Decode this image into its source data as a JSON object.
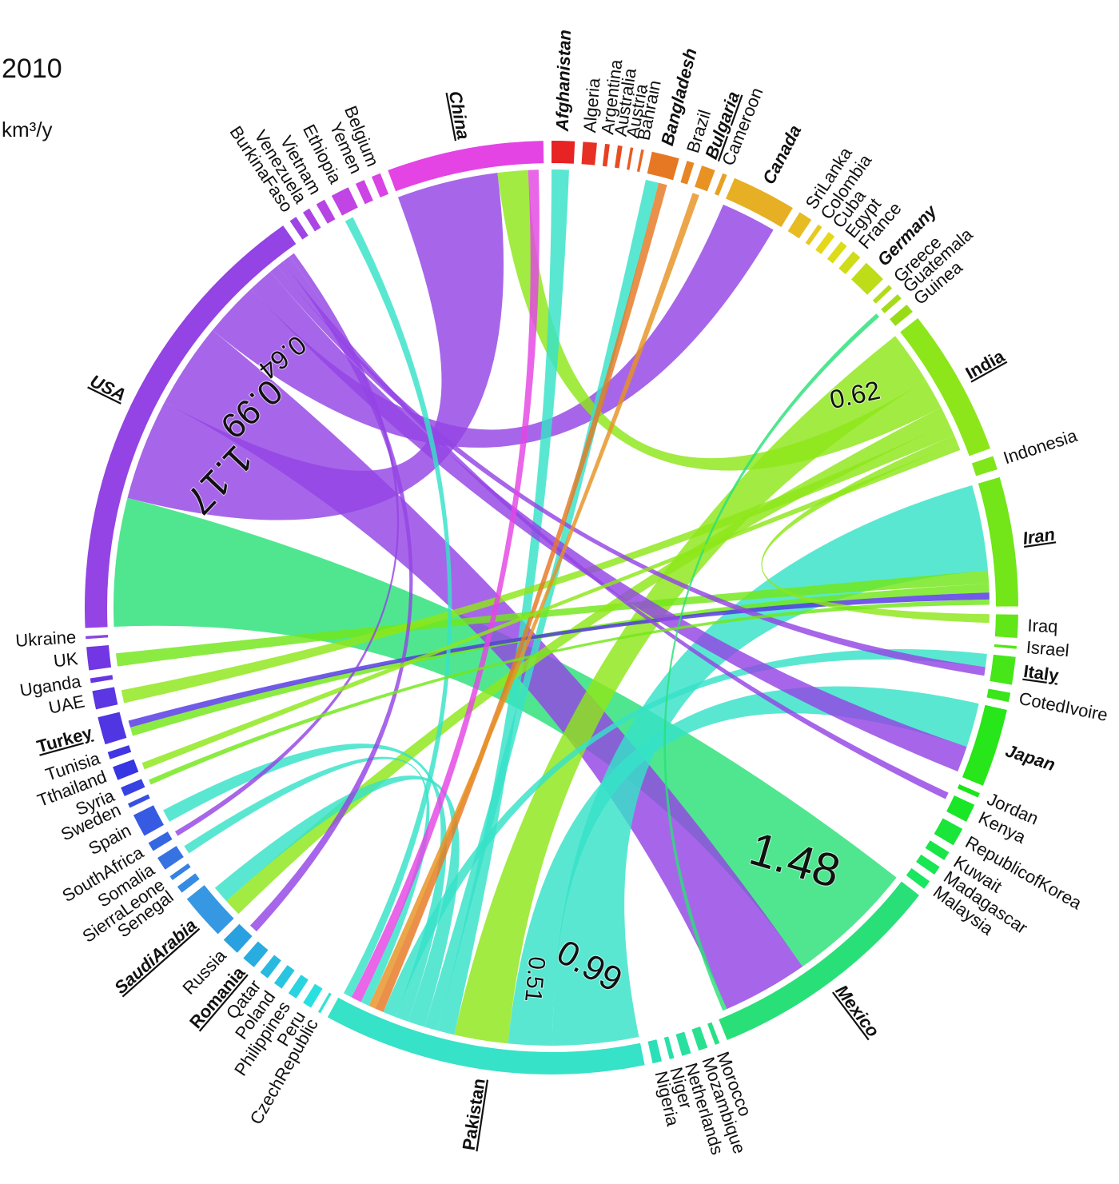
{
  "chart_data": {
    "type": "chord",
    "title": "2010",
    "unit": "km³/y",
    "nodes": [
      {
        "name": "Afghanistan",
        "value": 0.25,
        "color": "hsl(0,80%,52%)",
        "style": "bold-italic"
      },
      {
        "name": "Algeria",
        "value": 0.15,
        "color": "hsl(4,80%,52%)"
      },
      {
        "name": "Argentina",
        "value": 0.05,
        "color": "hsl(9,80%,52%)"
      },
      {
        "name": "Australia",
        "value": 0.05,
        "color": "hsl(13,80%,52%)"
      },
      {
        "name": "Austria",
        "value": 0.03,
        "color": "hsl(17,80%,52%)"
      },
      {
        "name": "Bahrain",
        "value": 0.03,
        "color": "hsl(21,80%,52%)"
      },
      {
        "name": "Bangladesh",
        "value": 0.3,
        "color": "hsl(26,80%,52%)",
        "style": "bold-italic"
      },
      {
        "name": "Brazil",
        "value": 0.08,
        "color": "hsl(30,80%,52%)"
      },
      {
        "name": "Bulgaria",
        "value": 0.15,
        "color": "hsl(34,80%,52%)",
        "style": "bold-italic-underline"
      },
      {
        "name": "Cameroon",
        "value": 0.05,
        "color": "hsl(39,80%,52%)"
      },
      {
        "name": "Canada",
        "value": 0.7,
        "color": "hsl(43,80%,52%)",
        "style": "bold-italic"
      },
      {
        "name": "SriLanka",
        "value": 0.15,
        "color": "hsl(47,80%,52%)"
      },
      {
        "name": "Colombia",
        "value": 0.05,
        "color": "hsl(51,80%,52%)"
      },
      {
        "name": "Cuba",
        "value": 0.08,
        "color": "hsl(56,80%,50%)"
      },
      {
        "name": "Egypt",
        "value": 0.08,
        "color": "hsl(60,80%,48%)"
      },
      {
        "name": "France",
        "value": 0.1,
        "color": "hsl(64,80%,48%)"
      },
      {
        "name": "Germany",
        "value": 0.25,
        "color": "hsl(69,80%,48%)",
        "style": "bold-italic"
      },
      {
        "name": "Greece",
        "value": 0.05,
        "color": "hsl(73,80%,48%)"
      },
      {
        "name": "Guatemala",
        "value": 0.06,
        "color": "hsl(77,80%,48%)"
      },
      {
        "name": "Guinea",
        "value": 0.1,
        "color": "hsl(81,80%,48%)"
      },
      {
        "name": "India",
        "value": 1.6,
        "color": "hsl(86,80%,50%)",
        "style": "bold-underline"
      },
      {
        "name": "Indonesia",
        "value": 0.15,
        "color": "hsl(90,80%,50%)"
      },
      {
        "name": "Iran",
        "value": 1.4,
        "color": "hsl(94,80%,50%)",
        "style": "bold-italic-underline"
      },
      {
        "name": "Iraq",
        "value": 0.25,
        "color": "hsl(99,80%,50%)"
      },
      {
        "name": "Israel",
        "value": 0.03,
        "color": "hsl(103,80%,50%)"
      },
      {
        "name": "Italy",
        "value": 0.3,
        "color": "hsl(107,80%,50%)",
        "style": "bold-underline"
      },
      {
        "name": "CotedIvoire",
        "value": 0.1,
        "color": "hsl(111,80%,50%)"
      },
      {
        "name": "Japan",
        "value": 0.85,
        "color": "hsl(116,80%,50%)",
        "style": "bold-italic"
      },
      {
        "name": "Jordan",
        "value": 0.05,
        "color": "hsl(120,80%,50%)"
      },
      {
        "name": "Kenya",
        "value": 0.2,
        "color": "hsl(124,80%,50%)"
      },
      {
        "name": "RepublicofKorea",
        "value": 0.2,
        "color": "hsl(129,80%,50%)"
      },
      {
        "name": "Kuwait",
        "value": 0.1,
        "color": "hsl(133,80%,50%)"
      },
      {
        "name": "Madagascar",
        "value": 0.1,
        "color": "hsl(137,80%,50%)"
      },
      {
        "name": "Malaysia",
        "value": 0.1,
        "color": "hsl(141,80%,50%)"
      },
      {
        "name": "Mexico",
        "value": 2.6,
        "color": "hsl(146,75%,52%)",
        "style": "bold-italic-underline"
      },
      {
        "name": "Morocco",
        "value": 0.05,
        "color": "hsl(150,75%,52%)"
      },
      {
        "name": "Mozambique",
        "value": 0.1,
        "color": "hsl(154,75%,52%)"
      },
      {
        "name": "Netherlands",
        "value": 0.1,
        "color": "hsl(159,75%,52%)"
      },
      {
        "name": "Niger",
        "value": 0.05,
        "color": "hsl(163,75%,52%)"
      },
      {
        "name": "Nigeria",
        "value": 0.1,
        "color": "hsl(167,75%,52%)"
      },
      {
        "name": "Pakistan",
        "value": 3.5,
        "color": "hsl(171,75%,55%)",
        "style": "bold-underline"
      },
      {
        "name": "CzechRepublic",
        "value": 0.03,
        "color": "hsl(176,75%,55%)"
      },
      {
        "name": "Peru",
        "value": 0.1,
        "color": "hsl(180,75%,52%)"
      },
      {
        "name": "Philippines",
        "value": 0.1,
        "color": "hsl(184,75%,52%)"
      },
      {
        "name": "Poland",
        "value": 0.1,
        "color": "hsl(189,75%,52%)"
      },
      {
        "name": "Qatar",
        "value": 0.1,
        "color": "hsl(193,75%,52%)"
      },
      {
        "name": "Romania",
        "value": 0.15,
        "color": "hsl(197,75%,52%)",
        "style": "bold-underline"
      },
      {
        "name": "Russia",
        "value": 0.2,
        "color": "hsl(201,75%,52%)"
      },
      {
        "name": "SaudiArabia",
        "value": 0.5,
        "color": "hsl(206,75%,55%)",
        "style": "bold-italic-underline"
      },
      {
        "name": "Senegal",
        "value": 0.08,
        "color": "hsl(210,75%,55%)"
      },
      {
        "name": "SierraLeone",
        "value": 0.05,
        "color": "hsl(214,75%,55%)"
      },
      {
        "name": "Somalia",
        "value": 0.15,
        "color": "hsl(219,75%,55%)"
      },
      {
        "name": "SouthAfrica",
        "value": 0.1,
        "color": "hsl(223,75%,55%)"
      },
      {
        "name": "Spain",
        "value": 0.25,
        "color": "hsl(227,75%,55%)"
      },
      {
        "name": "Sweden",
        "value": 0.05,
        "color": "hsl(231,75%,55%)"
      },
      {
        "name": "Syria",
        "value": 0.1,
        "color": "hsl(236,75%,55%)"
      },
      {
        "name": "Tthailand",
        "value": 0.15,
        "color": "hsl(240,75%,55%)"
      },
      {
        "name": "Tunisia",
        "value": 0.08,
        "color": "hsl(244,75%,55%)"
      },
      {
        "name": "Turkey",
        "value": 0.3,
        "color": "hsl(249,75%,55%)",
        "style": "bold-underline"
      },
      {
        "name": "UAE",
        "value": 0.2,
        "color": "hsl(253,75%,55%)"
      },
      {
        "name": "Uganda",
        "value": 0.05,
        "color": "hsl(257,75%,55%)"
      },
      {
        "name": "UK",
        "value": 0.25,
        "color": "hsl(261,75%,55%)"
      },
      {
        "name": "Ukraine",
        "value": 0.03,
        "color": "hsl(266,75%,58%)"
      },
      {
        "name": "USA",
        "value": 5.0,
        "color": "hsl(270,75%,58%)",
        "style": "bold-italic-underline"
      },
      {
        "name": "BurkinaFaso",
        "value": 0.08,
        "color": "hsl(274,75%,58%)"
      },
      {
        "name": "Venezuela",
        "value": 0.08,
        "color": "hsl(279,75%,58%)"
      },
      {
        "name": "Vietnam",
        "value": 0.1,
        "color": "hsl(283,75%,58%)"
      },
      {
        "name": "Ethiopia",
        "value": 0.2,
        "color": "hsl(287,75%,58%)"
      },
      {
        "name": "Yemen",
        "value": 0.1,
        "color": "hsl(291,75%,58%)"
      },
      {
        "name": "Belgium",
        "value": 0.1,
        "color": "hsl(296,75%,58%)"
      },
      {
        "name": "China",
        "value": 1.7,
        "color": "hsl(300,75%,58%)",
        "style": "bold-italic-underline"
      }
    ],
    "flows": [
      {
        "source": "Mexico",
        "target": "USA",
        "value": 1.48,
        "labeled": true
      },
      {
        "source": "USA",
        "target": "China",
        "value": 1.17,
        "labeled": true
      },
      {
        "source": "USA",
        "target": "Mexico",
        "value": 0.99,
        "labeled": true
      },
      {
        "source": "USA",
        "target": "Canada",
        "value": 0.64,
        "labeled": true
      },
      {
        "source": "Pakistan",
        "target": "Iran",
        "value": 0.99,
        "labeled": true
      },
      {
        "source": "Pakistan",
        "target": "Japan",
        "value": 0.51,
        "labeled": true
      },
      {
        "source": "India",
        "target": "Pakistan",
        "value": 0.62,
        "labeled": true
      },
      {
        "source": "India",
        "target": "China",
        "value": 0.35
      },
      {
        "source": "Pakistan",
        "target": "Afghanistan",
        "value": 0.2
      },
      {
        "source": "Pakistan",
        "target": "Bangladesh",
        "value": 0.15
      },
      {
        "source": "Iran",
        "target": "UK",
        "value": 0.15
      },
      {
        "source": "Iran",
        "target": "Turkey",
        "value": 0.1
      },
      {
        "source": "India",
        "target": "SaudiArabia",
        "value": 0.2
      },
      {
        "source": "India",
        "target": "UAE",
        "value": 0.15
      },
      {
        "source": "Pakistan",
        "target": "SaudiArabia",
        "value": 0.2
      },
      {
        "source": "Pakistan",
        "target": "Spain",
        "value": 0.15
      },
      {
        "source": "Pakistan",
        "target": "Italy",
        "value": 0.15
      },
      {
        "source": "Turkey",
        "target": "Iran",
        "value": 0.08
      },
      {
        "source": "USA",
        "target": "Japan",
        "value": 0.3
      },
      {
        "source": "USA",
        "target": "Italy",
        "value": 0.1
      },
      {
        "source": "USA",
        "target": "Kenya",
        "value": 0.08
      },
      {
        "source": "Bangladesh",
        "target": "Pakistan",
        "value": 0.1
      },
      {
        "source": "Bulgaria",
        "target": "Pakistan",
        "value": 0.08
      },
      {
        "source": "Pakistan",
        "target": "Somalia",
        "value": 0.1
      },
      {
        "source": "China",
        "target": "Pakistan",
        "value": 0.12
      },
      {
        "source": "Mexico",
        "target": "Guatemala",
        "value": 0.05
      },
      {
        "source": "India",
        "target": "Iraq",
        "value": 0.1
      },
      {
        "source": "Pakistan",
        "target": "Ethiopia",
        "value": 0.1
      },
      {
        "source": "USA",
        "target": "Russia",
        "value": 0.1
      },
      {
        "source": "USA",
        "target": "SouthAfrica",
        "value": 0.06
      },
      {
        "source": "Iran",
        "target": "Syria",
        "value": 0.06
      },
      {
        "source": "India",
        "target": "Tthailand",
        "value": 0.08
      }
    ]
  }
}
